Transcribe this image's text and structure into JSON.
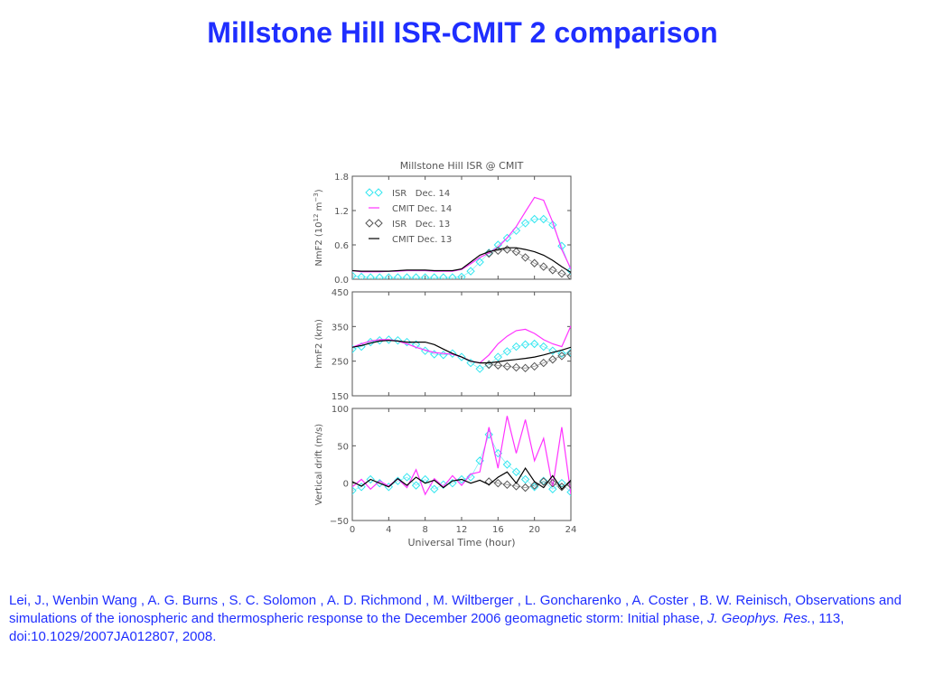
{
  "slide": {
    "title": "Millstone Hill ISR-CMIT 2 comparison"
  },
  "citation": {
    "part1": "Lei, J., Wenbin Wang , A. G. Burns , S. C. Solomon , A. D. Richmond , M. Wiltberger , L. Goncharenko , A. Coster , B. W. Reinisch, Observations and simulations of the ionospheric and thermospheric response to the December 2006 geomagnetic storm: Initial phase, ",
    "journal": "J. Geophys. Res.",
    "part2": ", 113, doi:10.1029/2007JA012807, 2008."
  },
  "chart_data": [
    {
      "type": "line",
      "title": "Millstone Hill ISR @ CMIT",
      "ylabel": "NmF2 (10^12 m^-3)",
      "ylabel_base": "NmF2 (10",
      "ylabel_exp1": "12",
      "ylabel_mid": " m",
      "ylabel_exp2": "−3",
      "ylabel_end": ")",
      "ylim": [
        0,
        1.8
      ],
      "yticks": [
        "0.0",
        "0.6",
        "1.2",
        "1.8"
      ],
      "ytick_values": [
        0,
        0.6,
        1.2,
        1.8
      ],
      "xlim": [
        0,
        24
      ],
      "legend_position": "top-left",
      "legend": [
        {
          "label": "ISR   Dec. 14",
          "color": "#33e6f0",
          "marker": "diamond"
        },
        {
          "label": "CMIT Dec. 14",
          "color": "#ff33ff",
          "marker": "line"
        },
        {
          "label": "ISR   Dec. 13",
          "color": "#555555",
          "marker": "diamond"
        },
        {
          "label": "CMIT Dec. 13",
          "color": "#000000",
          "marker": "line"
        }
      ],
      "series": [
        {
          "name": "ISR   Dec. 14",
          "color": "#33e6f0",
          "marker": "diamond",
          "x": [
            0,
            1,
            2,
            3,
            4,
            5,
            6,
            7,
            8,
            9,
            10,
            11,
            12,
            13,
            14,
            15,
            16,
            17,
            18,
            19,
            20,
            21,
            22,
            23,
            24
          ],
          "y": [
            0.06,
            0.04,
            0.03,
            0.03,
            0.03,
            0.03,
            0.03,
            0.03,
            0.03,
            0.03,
            0.03,
            0.03,
            0.04,
            0.14,
            0.3,
            0.46,
            0.6,
            0.72,
            0.85,
            0.98,
            1.05,
            1.05,
            0.95,
            0.58,
            0.15
          ]
        },
        {
          "name": "CMIT Dec. 14",
          "color": "#ff33ff",
          "marker": "line",
          "x": [
            0,
            1,
            2,
            3,
            4,
            5,
            6,
            7,
            8,
            9,
            10,
            11,
            12,
            13,
            14,
            15,
            16,
            17,
            18,
            19,
            20,
            21,
            22,
            23,
            24
          ],
          "y": [
            0.15,
            0.13,
            0.13,
            0.13,
            0.14,
            0.14,
            0.15,
            0.15,
            0.15,
            0.14,
            0.14,
            0.14,
            0.17,
            0.27,
            0.38,
            0.46,
            0.56,
            0.72,
            0.92,
            1.18,
            1.43,
            1.38,
            1.0,
            0.52,
            0.18
          ]
        },
        {
          "name": "ISR   Dec. 13",
          "color": "#555555",
          "marker": "diamond",
          "x": [
            15,
            16,
            17,
            18,
            19,
            20,
            21,
            22,
            23,
            24
          ],
          "y": [
            0.45,
            0.5,
            0.52,
            0.48,
            0.38,
            0.28,
            0.22,
            0.16,
            0.1,
            0.05
          ]
        },
        {
          "name": "CMIT Dec. 13",
          "color": "#000000",
          "marker": "line",
          "x": [
            0,
            1,
            2,
            3,
            4,
            5,
            6,
            7,
            8,
            9,
            10,
            11,
            12,
            13,
            14,
            15,
            16,
            17,
            18,
            19,
            20,
            21,
            22,
            23,
            24
          ],
          "y": [
            0.15,
            0.14,
            0.14,
            0.14,
            0.14,
            0.15,
            0.16,
            0.16,
            0.16,
            0.15,
            0.15,
            0.15,
            0.18,
            0.3,
            0.42,
            0.48,
            0.52,
            0.55,
            0.55,
            0.52,
            0.48,
            0.42,
            0.33,
            0.22,
            0.12
          ]
        }
      ]
    },
    {
      "type": "line",
      "ylabel": "hmF2 (km)",
      "ylim": [
        150,
        450
      ],
      "yticks": [
        "150",
        "250",
        "350",
        "450"
      ],
      "ytick_values": [
        150,
        250,
        350,
        450
      ],
      "xlim": [
        0,
        24
      ],
      "series": [
        {
          "name": "ISR   Dec. 14",
          "color": "#33e6f0",
          "marker": "diamond",
          "x": [
            0,
            1,
            2,
            3,
            4,
            5,
            6,
            7,
            8,
            9,
            10,
            11,
            12,
            13,
            14,
            15,
            16,
            17,
            18,
            19,
            20,
            21,
            22,
            23,
            24
          ],
          "y": [
            285,
            292,
            305,
            310,
            312,
            310,
            305,
            298,
            280,
            270,
            268,
            272,
            262,
            245,
            228,
            240,
            262,
            278,
            292,
            298,
            300,
            292,
            280,
            272,
            275
          ]
        },
        {
          "name": "CMIT Dec. 14",
          "color": "#ff33ff",
          "marker": "line",
          "x": [
            0,
            1,
            2,
            3,
            4,
            5,
            6,
            7,
            8,
            9,
            10,
            11,
            12,
            13,
            14,
            15,
            16,
            17,
            18,
            19,
            20,
            21,
            22,
            23,
            24
          ],
          "y": [
            290,
            300,
            308,
            312,
            312,
            308,
            300,
            290,
            282,
            275,
            272,
            270,
            262,
            250,
            245,
            268,
            300,
            322,
            338,
            342,
            330,
            312,
            300,
            292,
            352
          ]
        },
        {
          "name": "ISR   Dec. 13",
          "color": "#555555",
          "marker": "diamond",
          "x": [
            15,
            16,
            17,
            18,
            19,
            20,
            21,
            22,
            23,
            24
          ],
          "y": [
            240,
            238,
            235,
            232,
            230,
            235,
            245,
            255,
            265,
            272
          ]
        },
        {
          "name": "CMIT Dec. 13",
          "color": "#000000",
          "marker": "line",
          "x": [
            0,
            1,
            2,
            3,
            4,
            5,
            6,
            7,
            8,
            9,
            10,
            11,
            12,
            13,
            14,
            15,
            16,
            17,
            18,
            19,
            20,
            21,
            22,
            23,
            24
          ],
          "y": [
            290,
            295,
            302,
            308,
            310,
            308,
            305,
            305,
            305,
            298,
            285,
            272,
            262,
            250,
            245,
            245,
            248,
            252,
            255,
            258,
            262,
            268,
            275,
            282,
            290
          ]
        }
      ]
    },
    {
      "type": "line",
      "ylabel": "Vertical drift (m/s)",
      "ylim": [
        -50,
        100
      ],
      "yticks": [
        "−50",
        "0",
        "50",
        "100"
      ],
      "ytick_values": [
        -50,
        0,
        50,
        100
      ],
      "xlim": [
        0,
        24
      ],
      "xticks": [
        "0",
        "4",
        "8",
        "12",
        "16",
        "20",
        "24"
      ],
      "xtick_values": [
        0,
        4,
        8,
        12,
        16,
        20,
        24
      ],
      "xlabel": "Universal Time (hour)",
      "series": [
        {
          "name": "ISR   Dec. 14",
          "color": "#33e6f0",
          "marker": "diamond",
          "x": [
            0,
            1,
            2,
            3,
            4,
            5,
            6,
            7,
            8,
            9,
            10,
            11,
            12,
            13,
            14,
            15,
            16,
            17,
            18,
            19,
            20,
            21,
            22,
            23,
            24
          ],
          "y": [
            -10,
            -5,
            5,
            0,
            -5,
            3,
            8,
            -3,
            5,
            -8,
            -2,
            0,
            5,
            8,
            30,
            65,
            40,
            25,
            15,
            5,
            -5,
            3,
            -8,
            0,
            -12
          ]
        },
        {
          "name": "CMIT Dec. 14",
          "color": "#ff33ff",
          "marker": "line",
          "x": [
            0,
            1,
            2,
            3,
            4,
            5,
            6,
            7,
            8,
            9,
            10,
            11,
            12,
            13,
            14,
            15,
            16,
            17,
            18,
            19,
            20,
            21,
            22,
            23,
            24
          ],
          "y": [
            -5,
            5,
            -8,
            3,
            -4,
            6,
            -6,
            18,
            -15,
            6,
            -5,
            10,
            -3,
            12,
            15,
            75,
            20,
            90,
            40,
            85,
            30,
            60,
            -5,
            75,
            -15
          ]
        },
        {
          "name": "ISR   Dec. 13",
          "color": "#555555",
          "marker": "diamond",
          "x": [
            15,
            16,
            17,
            18,
            19,
            20,
            21,
            22,
            23,
            24
          ],
          "y": [
            2,
            0,
            -2,
            -4,
            -6,
            -3,
            2,
            0,
            -5,
            -2
          ]
        },
        {
          "name": "CMIT Dec. 13",
          "color": "#000000",
          "marker": "line",
          "x": [
            0,
            1,
            2,
            3,
            4,
            5,
            6,
            7,
            8,
            9,
            10,
            11,
            12,
            13,
            14,
            15,
            16,
            17,
            18,
            19,
            20,
            21,
            22,
            23,
            24
          ],
          "y": [
            2,
            -4,
            5,
            0,
            -5,
            6,
            -3,
            8,
            0,
            4,
            -6,
            3,
            5,
            0,
            4,
            -2,
            8,
            15,
            0,
            20,
            2,
            -6,
            10,
            -8,
            4
          ]
        }
      ]
    }
  ]
}
